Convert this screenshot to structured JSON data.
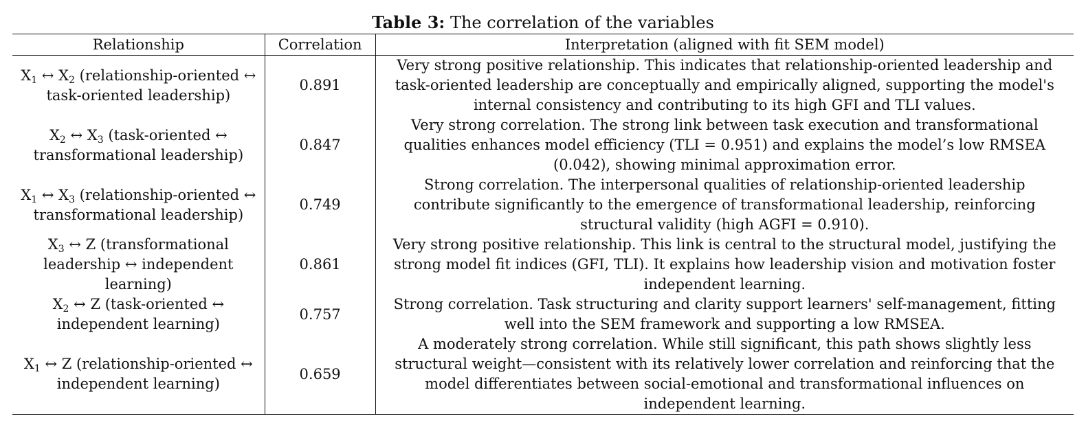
{
  "caption": {
    "label": "Table 3:",
    "text": "The correlation of the variables"
  },
  "headers": {
    "relationship": "Relationship",
    "correlation": "Correlation",
    "interpretation": "Interpretation (aligned with fit SEM model)"
  },
  "rows": [
    {
      "pair": {
        "a": "X",
        "a_sub": "1",
        "arrow": "↔",
        "b": "X",
        "b_sub": "2"
      },
      "desc": "(relationship-oriented ↔ task-oriented leadership)",
      "correlation": "0.891",
      "interpretation": "Very strong positive relationship. This indicates that relationship-oriented leadership and task-oriented leadership are conceptually and empirically aligned, supporting the model's internal consistency and contributing to its high GFI and TLI values."
    },
    {
      "pair": {
        "a": "X",
        "a_sub": "2",
        "arrow": "↔",
        "b": "X",
        "b_sub": "3"
      },
      "desc": "(task-oriented ↔ transformational leadership)",
      "correlation": "0.847",
      "interpretation": "Very strong correlation. The strong link between task execution and transformational qualities enhances model efficiency (TLI = 0.951) and explains the model’s low RMSEA (0.042), showing minimal approximation error."
    },
    {
      "pair": {
        "a": "X",
        "a_sub": "1",
        "arrow": "↔",
        "b": "X",
        "b_sub": "3"
      },
      "desc": "(relationship-oriented ↔ transformational leadership)",
      "correlation": "0.749",
      "interpretation": "Strong correlation. The interpersonal qualities of relationship-oriented leadership contribute significantly to the emergence of transformational leadership, reinforcing structural validity (high AGFI = 0.910)."
    },
    {
      "pair": {
        "a": "X",
        "a_sub": "3",
        "arrow": "↔",
        "b": "Z",
        "b_sub": ""
      },
      "desc": "(transformational leadership ↔ independent learning)",
      "correlation": "0.861",
      "interpretation": "Very strong positive relationship. This link is central to the structural model, justifying the strong model fit indices (GFI, TLI). It explains how leadership vision and motivation foster independent learning."
    },
    {
      "pair": {
        "a": "X",
        "a_sub": "2",
        "arrow": "↔",
        "b": "Z",
        "b_sub": ""
      },
      "desc": "(task-oriented ↔ independent learning)",
      "correlation": "0.757",
      "interpretation": "Strong correlation. Task structuring and clarity support learners' self-management, fitting well into the SEM framework and supporting a low RMSEA."
    },
    {
      "pair": {
        "a": "X",
        "a_sub": "1",
        "arrow": "↔",
        "b": "Z",
        "b_sub": ""
      },
      "desc": "(relationship-oriented ↔ independent learning)",
      "correlation": "0.659",
      "interpretation": "A moderately strong correlation. While still significant, this path shows slightly less structural weight—consistent with its relatively lower correlation and reinforcing that the model differentiates between social-emotional and transformational influences on independent learning."
    }
  ]
}
